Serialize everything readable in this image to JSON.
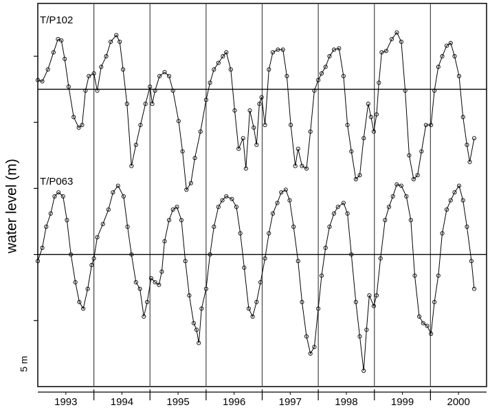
{
  "chart_data": {
    "type": "line",
    "y_label": "water level (m)",
    "scale_label": "5 m",
    "xlim": [
      1993,
      2001
    ],
    "ylim": [
      0,
      29
    ],
    "yticks": [
      5,
      10,
      15,
      20,
      25
    ],
    "xticks": [
      {
        "value": 1993.5,
        "label": "1993"
      },
      {
        "value": 1994.5,
        "label": "1994"
      },
      {
        "value": 1995.5,
        "label": "1995"
      },
      {
        "value": 1996.5,
        "label": "1996"
      },
      {
        "value": 1997.5,
        "label": "1997"
      },
      {
        "value": 1998.5,
        "label": "1998"
      },
      {
        "value": 1999.5,
        "label": "1999"
      },
      {
        "value": 2000.5,
        "label": "2000"
      }
    ],
    "vlines": [
      1994,
      1995,
      1996,
      1997,
      1998,
      1999,
      2000
    ],
    "hlines": [
      22.5,
      10
    ],
    "color": "#000000",
    "series": [
      {
        "name": "T/P102",
        "color": "#000000",
        "x": [
          1993.0,
          1993.08,
          1993.18,
          1993.28,
          1993.36,
          1993.42,
          1993.48,
          1993.55,
          1993.64,
          1993.73,
          1993.79,
          1993.85,
          1993.91,
          1994.0,
          1994.06,
          1994.13,
          1994.22,
          1994.3,
          1994.4,
          1994.46,
          1994.52,
          1994.59,
          1994.67,
          1994.75,
          1994.83,
          1994.92,
          1995.0,
          1995.04,
          1995.09,
          1995.17,
          1995.26,
          1995.34,
          1995.41,
          1995.51,
          1995.58,
          1995.65,
          1995.73,
          1995.8,
          1995.9,
          1996.0,
          1996.07,
          1996.14,
          1996.22,
          1996.3,
          1996.36,
          1996.44,
          1996.51,
          1996.58,
          1996.66,
          1996.71,
          1996.78,
          1996.85,
          1996.9,
          1996.95,
          1996.99,
          1997.05,
          1997.12,
          1997.19,
          1997.28,
          1997.37,
          1997.44,
          1997.51,
          1997.59,
          1997.64,
          1997.71,
          1997.79,
          1997.86,
          1997.93,
          1998.0,
          1998.06,
          1998.13,
          1998.2,
          1998.28,
          1998.37,
          1998.45,
          1998.52,
          1998.59,
          1998.67,
          1998.74,
          1998.81,
          1998.89,
          1998.94,
          1998.99,
          1999.04,
          1999.08,
          1999.13,
          1999.21,
          1999.31,
          1999.4,
          1999.48,
          1999.55,
          1999.62,
          1999.7,
          1999.77,
          1999.84,
          1999.92,
          2000.01,
          2000.07,
          2000.14,
          2000.21,
          2000.29,
          2000.36,
          2000.43,
          2000.51,
          2000.58,
          2000.65,
          2000.7,
          2000.78
        ],
        "values": [
          23.2,
          23.1,
          24.0,
          25.3,
          26.3,
          26.2,
          24.8,
          22.7,
          20.4,
          19.6,
          19.8,
          22.4,
          23.5,
          23.7,
          22.4,
          24.2,
          25.0,
          26.1,
          26.6,
          26.1,
          24.0,
          21.4,
          16.7,
          18.3,
          19.8,
          21.4,
          22.7,
          21.4,
          22.4,
          23.5,
          23.8,
          23.5,
          22.4,
          20.1,
          17.8,
          14.9,
          15.4,
          17.3,
          19.3,
          21.7,
          23.0,
          24.0,
          24.5,
          25.0,
          25.3,
          24.0,
          20.9,
          18.0,
          18.8,
          16.5,
          20.9,
          19.6,
          18.3,
          21.4,
          21.9,
          19.8,
          24.0,
          25.3,
          25.5,
          25.5,
          23.5,
          19.8,
          16.7,
          18.0,
          16.7,
          16.5,
          19.3,
          22.4,
          23.2,
          23.7,
          24.2,
          25.0,
          25.5,
          25.6,
          23.5,
          19.8,
          17.8,
          15.7,
          16.0,
          18.8,
          21.4,
          20.4,
          19.3,
          20.6,
          23.0,
          25.3,
          25.4,
          26.3,
          26.8,
          26.1,
          22.4,
          17.5,
          15.7,
          16.0,
          17.8,
          19.8,
          19.8,
          22.4,
          24.2,
          25.0,
          25.8,
          26.0,
          25.0,
          23.5,
          20.4,
          18.3,
          17.0,
          18.8
        ]
      },
      {
        "name": "T/P063",
        "color": "#000000",
        "x": [
          1993.0,
          1993.08,
          1993.15,
          1993.23,
          1993.3,
          1993.37,
          1993.45,
          1993.52,
          1993.59,
          1993.67,
          1993.74,
          1993.81,
          1993.89,
          1993.96,
          1994.0,
          1994.06,
          1994.16,
          1994.26,
          1994.34,
          1994.43,
          1994.53,
          1994.6,
          1994.67,
          1994.75,
          1994.82,
          1994.89,
          1994.95,
          1995.02,
          1995.09,
          1995.16,
          1995.21,
          1995.26,
          1995.34,
          1995.41,
          1995.48,
          1995.56,
          1995.63,
          1995.7,
          1995.78,
          1995.83,
          1995.87,
          1995.92,
          1996.0,
          1996.07,
          1996.14,
          1996.22,
          1996.29,
          1996.36,
          1996.46,
          1996.54,
          1996.61,
          1996.68,
          1996.76,
          1996.83,
          1996.9,
          1996.97,
          1997.05,
          1997.12,
          1997.19,
          1997.27,
          1997.34,
          1997.42,
          1997.49,
          1997.56,
          1997.64,
          1997.71,
          1997.79,
          1997.86,
          1997.93,
          1998.0,
          1998.06,
          1998.13,
          1998.2,
          1998.28,
          1998.35,
          1998.45,
          1998.52,
          1998.59,
          1998.67,
          1998.74,
          1998.81,
          1998.86,
          1998.91,
          1998.99,
          1999.04,
          1999.11,
          1999.19,
          1999.26,
          1999.33,
          1999.4,
          1999.48,
          1999.57,
          1999.65,
          1999.72,
          1999.8,
          1999.87,
          1999.94,
          2000.01,
          2000.07,
          2000.14,
          2000.21,
          2000.29,
          2000.36,
          2000.43,
          2000.51,
          2000.58,
          2000.65,
          2000.73,
          2000.78
        ],
        "values": [
          9.5,
          10.5,
          12.1,
          13.1,
          14.4,
          14.7,
          14.4,
          12.6,
          10.0,
          7.9,
          6.4,
          5.9,
          7.4,
          9.2,
          9.7,
          11.3,
          12.3,
          13.4,
          14.7,
          15.2,
          14.4,
          12.1,
          10.0,
          7.9,
          7.4,
          5.3,
          6.4,
          8.2,
          7.9,
          7.7,
          8.7,
          11.0,
          12.6,
          13.4,
          13.6,
          12.6,
          9.5,
          6.9,
          4.8,
          4.3,
          3.3,
          5.9,
          7.4,
          10.0,
          12.1,
          13.6,
          14.1,
          14.4,
          14.2,
          13.6,
          11.6,
          9.0,
          5.9,
          5.3,
          6.4,
          7.9,
          9.7,
          11.6,
          13.1,
          13.9,
          14.7,
          14.9,
          14.1,
          12.1,
          9.5,
          6.4,
          3.8,
          2.5,
          3.0,
          5.9,
          8.4,
          10.5,
          12.1,
          13.1,
          13.6,
          13.9,
          13.1,
          10.0,
          6.4,
          3.8,
          1.2,
          4.3,
          6.9,
          6.1,
          6.9,
          9.7,
          12.6,
          13.6,
          14.4,
          15.3,
          15.2,
          14.4,
          12.6,
          8.4,
          5.3,
          4.8,
          4.6,
          4.0,
          6.4,
          8.4,
          11.6,
          13.4,
          14.1,
          14.7,
          15.2,
          14.1,
          12.1,
          9.5,
          7.4
        ]
      }
    ]
  }
}
